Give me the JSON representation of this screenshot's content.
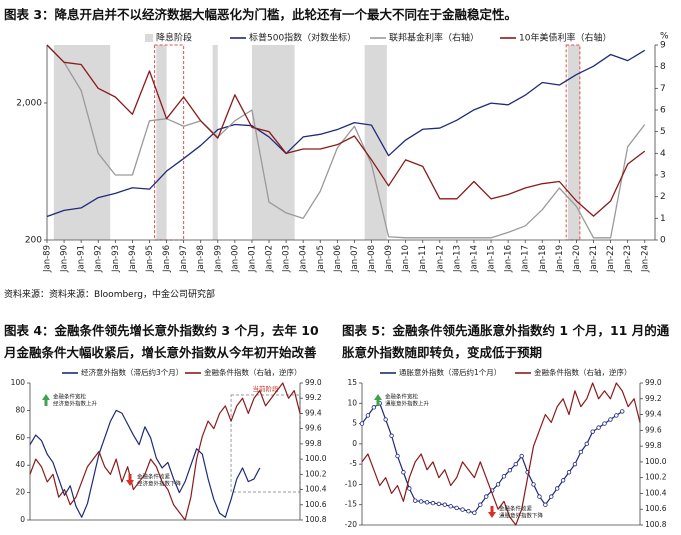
{
  "chart_data": [
    {
      "type": "line",
      "title": "图表 3：降息开启并不以经济数据大幅恶化为门槛，此轮还有一个最大不同在于金融稳定性。",
      "source": "资料来源：资料来源：Bloomberg，中金公司研究部",
      "x": [
        "Jan-89",
        "Jan-90",
        "Jan-91",
        "Jan-92",
        "Jan-93",
        "Jan-94",
        "Jan-95",
        "Jan-96",
        "Jan-97",
        "Jan-98",
        "Jan-99",
        "Jan-00",
        "Jan-01",
        "Jan-02",
        "Jan-03",
        "Jan-04",
        "Jan-05",
        "Jan-06",
        "Jan-07",
        "Jan-08",
        "Jan-09",
        "Jan-10",
        "Jan-11",
        "Jan-12",
        "Jan-13",
        "Jan-14",
        "Jan-15",
        "Jan-16",
        "Jan-17",
        "Jan-18",
        "Jan-19",
        "Jan-20",
        "Jan-21",
        "Jan-22",
        "Jan-23",
        "Jan-24"
      ],
      "log": true,
      "ylim": [
        200,
        5300
      ],
      "yticks": [
        200,
        {
          "value": 2000,
          "label": "2,000"
        }
      ],
      "y2lim": [
        0,
        9
      ],
      "y2ticks": [
        0,
        1,
        2,
        3,
        4,
        5,
        6,
        7,
        8,
        9
      ],
      "y2label": "%",
      "shaded_name": "降息阶段",
      "shaded_color": "#d9d9d9",
      "shaded_periods": [
        [
          0.4,
          3.7
        ],
        [
          6.4,
          7.0
        ],
        [
          9.7,
          10.0
        ],
        [
          12.0,
          14.5
        ],
        [
          18.6,
          19.9
        ],
        [
          30.5,
          31.2
        ]
      ],
      "highlight_periods": [
        [
          6.3,
          8.0
        ],
        [
          30.4,
          31.2
        ]
      ],
      "highlight_color": "#e0504a",
      "series": [
        {
          "name": "标普500指数（对数坐标）",
          "color": "#1f2a7a",
          "values": [
            297,
            329,
            343,
            408,
            438,
            481,
            470,
            636,
            786,
            980,
            1279,
            1394,
            1366,
            1130,
            855,
            1131,
            1181,
            1280,
            1438,
            1378,
            825,
            1073,
            1286,
            1312,
            1498,
            1782,
            1995,
            1940,
            2279,
            2823,
            2704,
            3225,
            3714,
            4515,
            4076,
            4845
          ]
        },
        {
          "name": "联邦基金利率（右轴）",
          "color": "#9a9a9a",
          "axis": "y2",
          "values": [
            9.0,
            8.2,
            6.9,
            4.0,
            3.0,
            3.0,
            5.5,
            5.6,
            5.25,
            5.5,
            4.75,
            5.5,
            6.0,
            1.75,
            1.25,
            1.0,
            2.25,
            4.25,
            5.25,
            3.5,
            0.15,
            0.1,
            0.1,
            0.1,
            0.1,
            0.1,
            0.1,
            0.35,
            0.65,
            1.4,
            2.4,
            1.55,
            0.1,
            0.1,
            4.3,
            5.33
          ]
        },
        {
          "name": "10年美债利率（右轴）",
          "color": "#8b1a1a",
          "axis": "y2",
          "values": [
            9.0,
            8.2,
            8.1,
            7.0,
            6.6,
            5.8,
            7.8,
            5.6,
            6.6,
            5.5,
            4.7,
            6.7,
            5.2,
            5.0,
            4.0,
            4.2,
            4.2,
            4.4,
            4.8,
            3.7,
            2.5,
            3.7,
            3.4,
            1.9,
            1.9,
            2.7,
            1.9,
            2.1,
            2.4,
            2.6,
            2.7,
            1.8,
            1.1,
            1.8,
            3.5,
            4.1
          ]
        }
      ]
    },
    {
      "type": "line",
      "title": "图表 4：金融条件领先增长意外指数约 3 个月，去年 10 月金融条件大幅收紧后，增长意外指数从今年初开始改善",
      "ylim": [
        0,
        100
      ],
      "yticks": [
        0,
        20,
        40,
        60,
        80,
        100
      ],
      "y2lim": [
        99,
        100.8
      ],
      "y2_reversed": true,
      "y2ticks": [
        {
          "value": 99,
          "label": "99.0"
        },
        99.2,
        99.4,
        99.6,
        99.8,
        {
          "value": 100,
          "label": "100.0"
        },
        100.2,
        100.4,
        100.6,
        100.8
      ],
      "highlight_periods": [
        [
          35,
          47
        ]
      ],
      "highlight_color": "#999999",
      "highlight_label": "当前阶段",
      "annotations": [
        [
          "金融条件宽松",
          "经济意外指数上升"
        ],
        [
          "金融条件收紧",
          "经济意外指数下降"
        ]
      ],
      "series": [
        {
          "name": "经济意外指数（滞后约3个月）",
          "color": "#1f2a7a",
          "values": [
            55,
            62,
            58,
            48,
            42,
            30,
            18,
            25,
            10,
            2,
            12,
            30,
            48,
            60,
            72,
            80,
            78,
            70,
            62,
            55,
            68,
            60,
            45,
            38,
            42,
            30,
            20,
            28,
            40,
            52,
            48,
            30,
            15,
            5,
            2,
            15,
            30,
            38,
            28,
            30,
            38,
            null,
            null,
            null,
            null,
            null,
            null,
            null
          ]
        },
        {
          "name": "金融条件指数（右轴，逆序）",
          "color": "#8b1a1a",
          "axis": "y2",
          "values": [
            100.2,
            100.0,
            100.1,
            100.3,
            100.2,
            100.5,
            100.4,
            100.6,
            100.5,
            100.3,
            100.1,
            100.0,
            99.9,
            100.1,
            100.2,
            100.0,
            100.3,
            100.1,
            100.4,
            100.3,
            100.2,
            100.0,
            100.1,
            100.3,
            100.4,
            100.6,
            100.7,
            100.8,
            100.5,
            100.0,
            99.7,
            99.5,
            99.6,
            99.4,
            99.3,
            99.5,
            99.3,
            99.2,
            99.4,
            99.2,
            99.1,
            99.3,
            99.2,
            99.1,
            99.0,
            99.2,
            99.1,
            99.4
          ]
        }
      ]
    },
    {
      "type": "line",
      "title": "图表 5：金融条件领先通胀意外指数约 1 个月，11 月的通胀意外指数随即转负，变成低于预期",
      "ylim": [
        -20,
        15
      ],
      "yticks": [
        15,
        10,
        5,
        0,
        -5,
        -10,
        -15,
        -20
      ],
      "y2lim": [
        99,
        100.8
      ],
      "y2_reversed": true,
      "y2ticks": [
        {
          "value": 99,
          "label": "99.0"
        },
        99.2,
        99.4,
        99.6,
        99.8,
        {
          "value": 100,
          "label": "100.0"
        },
        100.2,
        100.4,
        100.6,
        100.8
      ],
      "annotations": [
        [
          "金融条件宽松",
          "通胀意外指数上升"
        ],
        [
          "金融条件收紧",
          "通胀意外指数下降"
        ]
      ],
      "series": [
        {
          "name": "通胀意外指数（滞后约1个月）",
          "color": "#1f2a7a",
          "markers": true,
          "values": [
            5,
            7,
            9,
            10,
            6,
            2,
            -3,
            -7,
            -11,
            -14,
            -14.2,
            -14.4,
            -14.6,
            -14.8,
            -15,
            -15.4,
            -15.8,
            -16.2,
            -16.6,
            -17,
            -15,
            -13,
            -11.5,
            -10,
            -8,
            -6.5,
            -5,
            -3,
            -7,
            -10,
            -13,
            -15,
            -13,
            -11,
            -9,
            -7,
            -5,
            -2,
            0,
            3,
            4,
            5,
            6,
            7,
            8,
            null,
            null,
            null
          ]
        },
        {
          "name": "金融条件指数（右轴，逆序）",
          "color": "#8b1a1a",
          "axis": "y2",
          "values": [
            100.0,
            99.9,
            100.1,
            100.3,
            100.2,
            100.4,
            100.3,
            100.5,
            100.2,
            100.0,
            99.9,
            100.1,
            100.0,
            100.2,
            100.1,
            100.3,
            100.2,
            100.0,
            100.1,
            100.2,
            100.0,
            100.2,
            100.4,
            100.6,
            100.5,
            100.7,
            100.8,
            100.6,
            100.2,
            99.8,
            99.6,
            99.4,
            99.5,
            99.3,
            99.2,
            99.4,
            99.1,
            99.3,
            99.2,
            99.0,
            99.2,
            99.1,
            99.2,
            99.0,
            99.1,
            99.3,
            99.2,
            99.5
          ]
        }
      ]
    }
  ]
}
